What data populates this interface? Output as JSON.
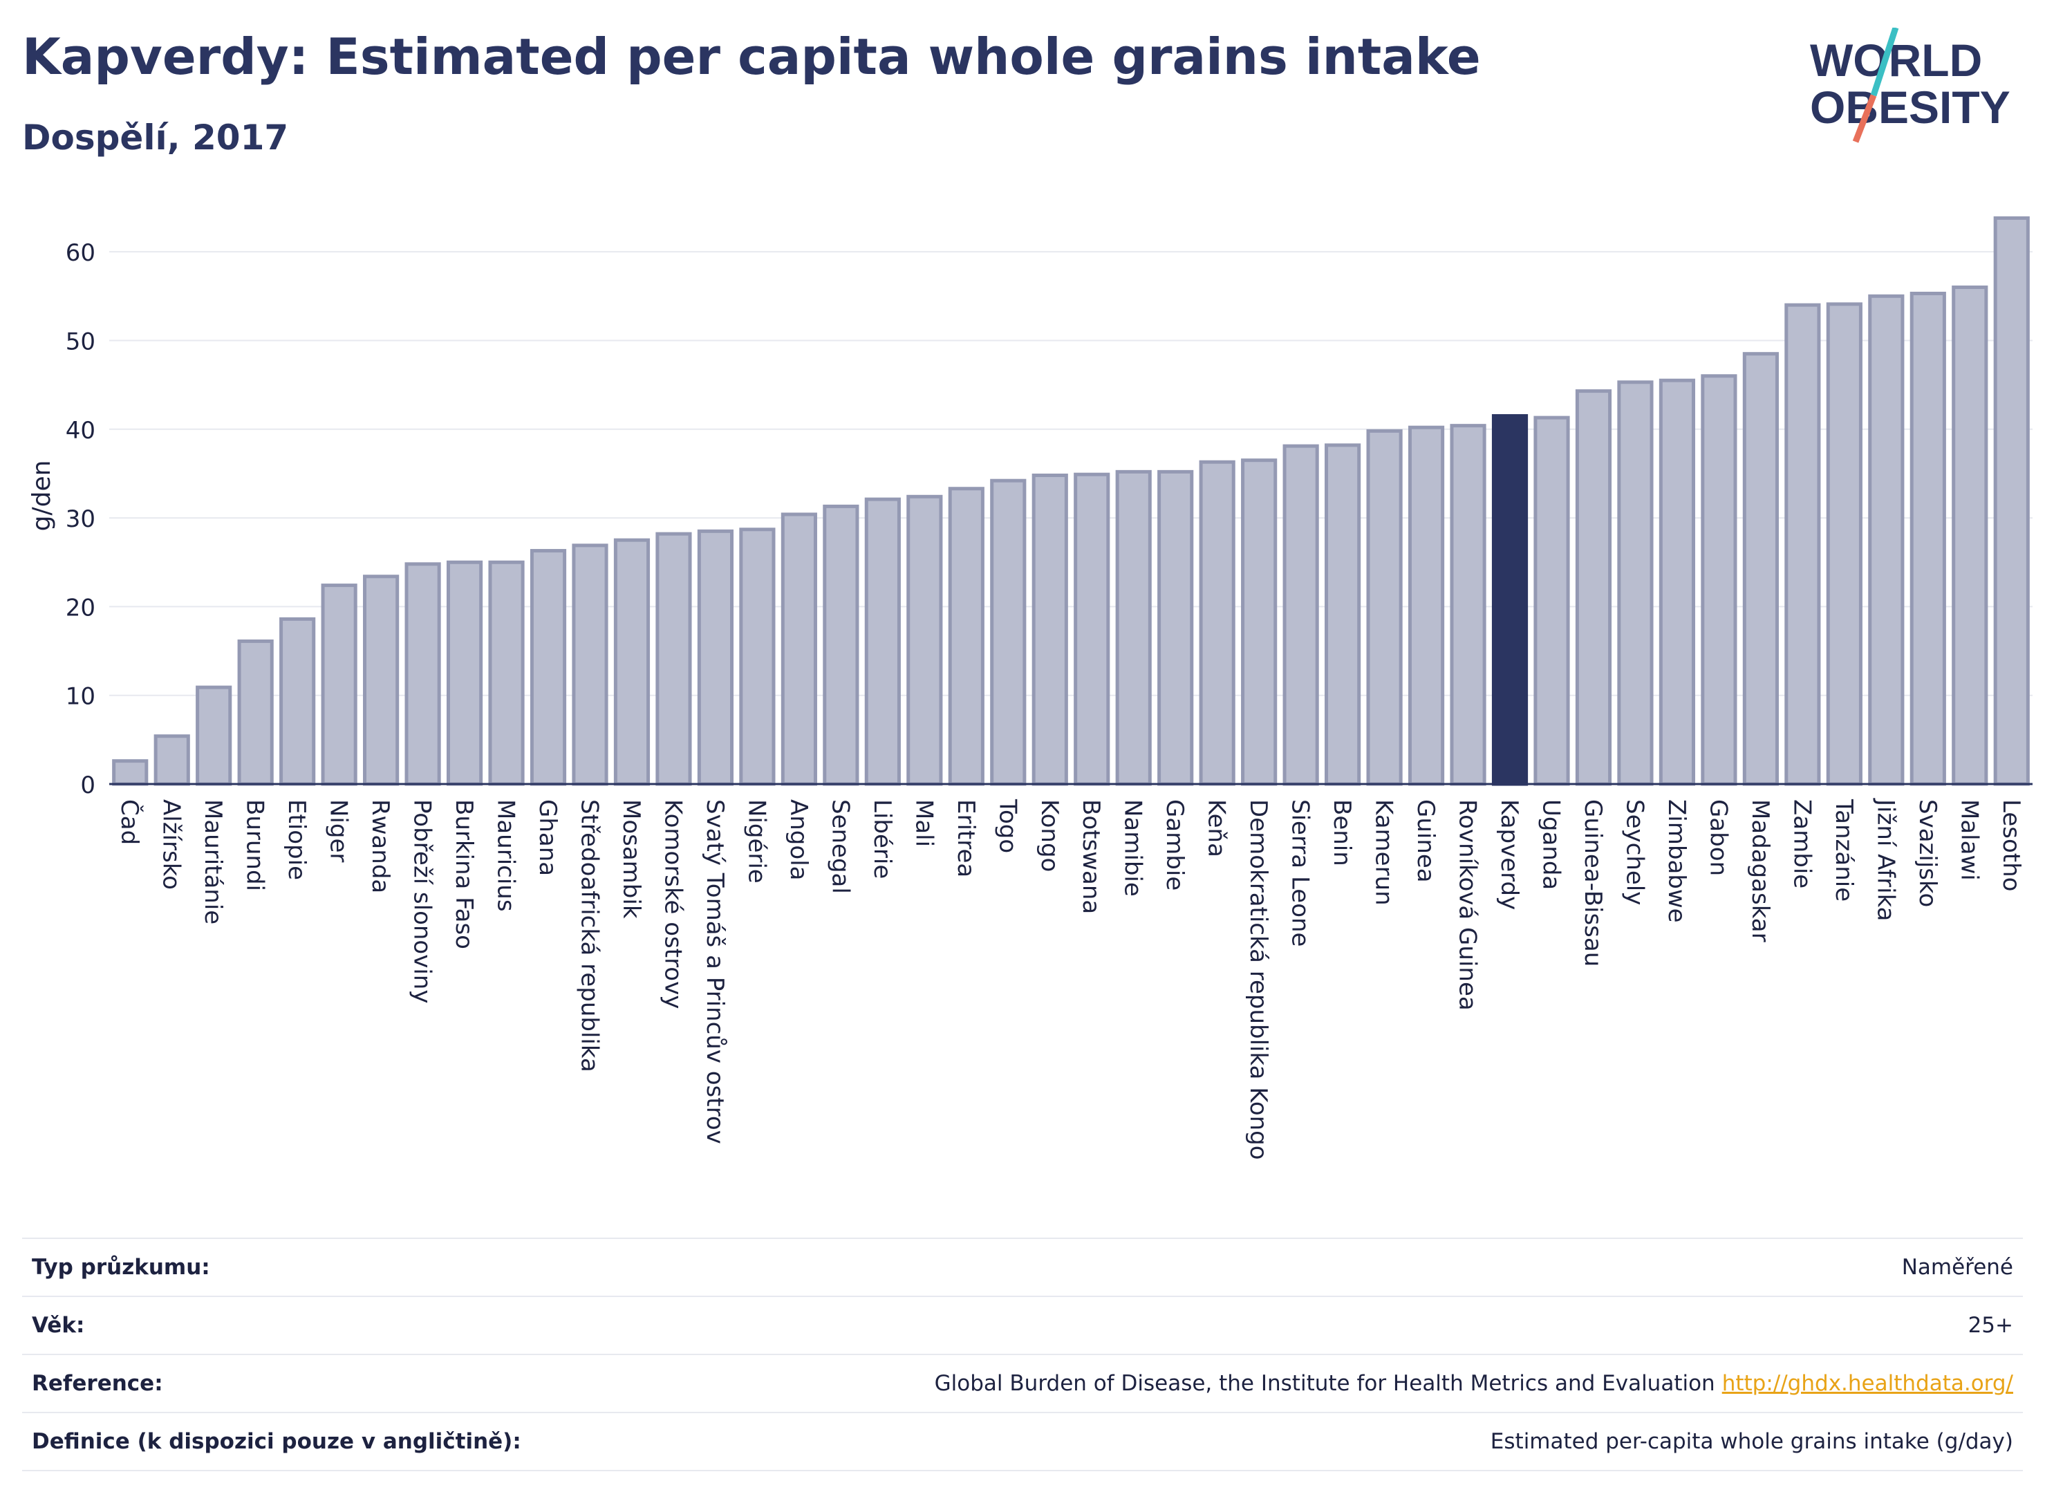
{
  "header": {
    "title": "Kapverdy: Estimated per capita whole grains intake",
    "subtitle": "Dospělí, 2017"
  },
  "logo": {
    "line1": "WORLD",
    "line2": "OBESITY",
    "accent_teal": "#3bbfc4",
    "accent_coral": "#e8705a"
  },
  "colors": {
    "bar": "#b9bdcf",
    "bar_border": "#9499b3",
    "highlight": "#2b3561",
    "axis": "#2b3561",
    "grid": "#e7e9ef"
  },
  "chart_data": {
    "type": "bar",
    "title": "Kapverdy: Estimated per capita whole grains intake",
    "subtitle": "Dospělí, 2017",
    "xlabel": "",
    "ylabel": "g/den",
    "ylim": [
      0,
      65
    ],
    "yticks": [
      0,
      10,
      20,
      30,
      40,
      50,
      60
    ],
    "grid": true,
    "highlight": "Kapverdy",
    "categories": [
      "Čad",
      "Alžírsko",
      "Mauritánie",
      "Burundi",
      "Etiopie",
      "Niger",
      "Rwanda",
      "Pobřeží slonoviny",
      "Burkina Faso",
      "Mauricius",
      "Ghana",
      "Středoafrická republika",
      "Mosambik",
      "Komorské ostrovy",
      "Svatý Tomáš a Princův ostrov",
      "Nigérie",
      "Angola",
      "Senegal",
      "Libérie",
      "Mali",
      "Eritrea",
      "Togo",
      "Kongo",
      "Botswana",
      "Namibie",
      "Gambie",
      "Keňa",
      "Demokratická republika Kongo",
      "Sierra Leone",
      "Benin",
      "Kamerun",
      "Guinea",
      "Rovníková Guinea",
      "Kapverdy",
      "Uganda",
      "Guinea-Bissau",
      "Seychely",
      "Zimbabwe",
      "Gabon",
      "Madagaskar",
      "Zambie",
      "Tanzánie",
      "Jižní Afrika",
      "Svazijsko",
      "Malawi",
      "Lesotho"
    ],
    "values": [
      2.6,
      5.4,
      10.9,
      16.1,
      18.6,
      22.4,
      23.4,
      24.8,
      25.0,
      25.0,
      26.3,
      26.9,
      27.5,
      28.2,
      28.5,
      28.7,
      30.4,
      31.3,
      32.1,
      32.4,
      33.3,
      34.2,
      34.8,
      34.9,
      35.2,
      35.2,
      36.3,
      36.5,
      38.1,
      38.2,
      39.8,
      40.2,
      40.4,
      41.5,
      41.3,
      44.3,
      45.3,
      45.5,
      46.0,
      48.5,
      54.0,
      54.1,
      55.0,
      55.3,
      56.0,
      63.8
    ]
  },
  "info_table": {
    "rows": [
      {
        "label": "Typ průzkumu:",
        "value": "Naměřené"
      },
      {
        "label": "Věk:",
        "value": "25+"
      },
      {
        "label": "Reference:",
        "value": "Global Burden of Disease, the Institute for Health Metrics and Evaluation",
        "link": "http://ghdx.healthdata.org/"
      },
      {
        "label": "Definice (k dispozici pouze v angličtině):",
        "value": "Estimated per-capita whole grains intake (g/day)"
      }
    ]
  }
}
